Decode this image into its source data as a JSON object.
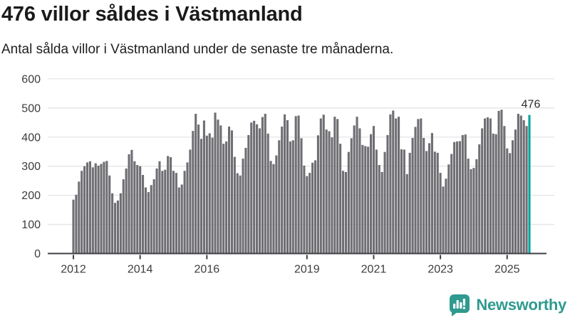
{
  "header": {
    "title": "476 villor såldes i Västmanland",
    "subtitle": "Antal sålda villor i Västmanland under de senaste tre månaderna."
  },
  "chart_data": {
    "type": "bar",
    "title": "476 villor såldes i Västmanland",
    "subtitle": "Antal sålda villor i Västmanland under de senaste tre månaderna.",
    "unit": "villor",
    "frequency": "monthly",
    "x_start": "2012-01",
    "x_end": "2025-09",
    "ylim": [
      0,
      600
    ],
    "grid": true,
    "y_ticks": [
      "0",
      "100",
      "200",
      "300",
      "400",
      "500",
      "600"
    ],
    "x_ticks": [
      {
        "label": "2012",
        "month_index": 0
      },
      {
        "label": "2014",
        "month_index": 24
      },
      {
        "label": "2016",
        "month_index": 48
      },
      {
        "label": "2019",
        "month_index": 84
      },
      {
        "label": "2021",
        "month_index": 108
      },
      {
        "label": "2023",
        "month_index": 132
      },
      {
        "label": "2025",
        "month_index": 156
      }
    ],
    "values": [
      185,
      202,
      247,
      284,
      300,
      313,
      317,
      296,
      310,
      302,
      308,
      315,
      318,
      268,
      207,
      174,
      182,
      207,
      255,
      292,
      341,
      356,
      317,
      304,
      300,
      270,
      227,
      211,
      235,
      255,
      292,
      317,
      284,
      288,
      335,
      331,
      284,
      277,
      227,
      237,
      284,
      313,
      357,
      421,
      480,
      443,
      394,
      457,
      405,
      413,
      398,
      484,
      460,
      440,
      377,
      385,
      436,
      423,
      332,
      276,
      268,
      326,
      363,
      407,
      450,
      456,
      444,
      430,
      469,
      480,
      412,
      318,
      307,
      337,
      389,
      436,
      478,
      458,
      385,
      389,
      472,
      474,
      396,
      302,
      266,
      277,
      312,
      320,
      406,
      464,
      477,
      426,
      420,
      399,
      470,
      462,
      377,
      284,
      280,
      349,
      396,
      440,
      470,
      430,
      373,
      369,
      367,
      410,
      438,
      357,
      304,
      280,
      349,
      407,
      478,
      491,
      464,
      470,
      358,
      357,
      273,
      346,
      397,
      435,
      462,
      464,
      397,
      352,
      379,
      414,
      350,
      346,
      277,
      230,
      257,
      306,
      342,
      383,
      385,
      386,
      407,
      409,
      326,
      290,
      294,
      324,
      375,
      430,
      464,
      468,
      464,
      412,
      410,
      490,
      494,
      438,
      361,
      345,
      389,
      426,
      480,
      474,
      458,
      438,
      476
    ],
    "highlight": {
      "index": 164,
      "value": 476,
      "label": "476"
    },
    "colors": {
      "bar": "#6e6e73",
      "highlight_bar": "#00a39b",
      "grid": "#e4e4e4",
      "axis": "#3f3f44",
      "tick_label": "#3c3c3c",
      "annotation": "#2b2b2b"
    }
  },
  "footer": {
    "brand": "Newsworthy",
    "brand_color": "#2f9a8f"
  }
}
